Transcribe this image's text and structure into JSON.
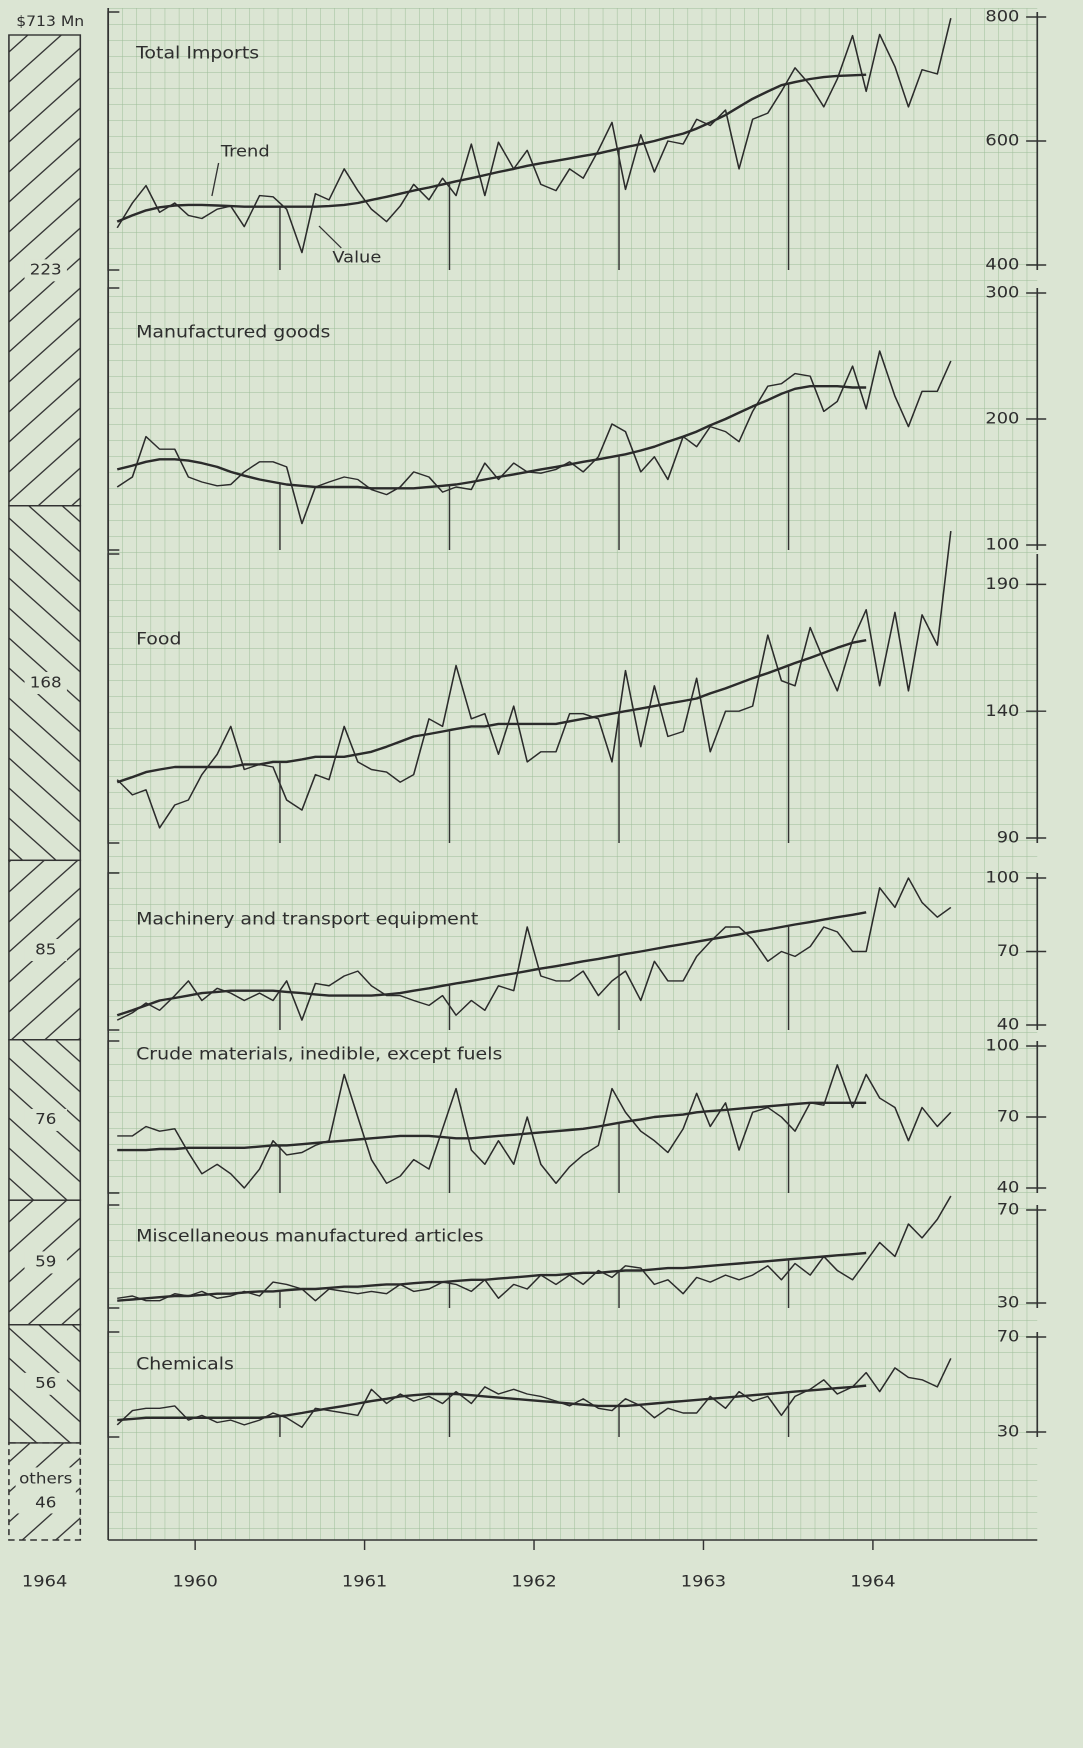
{
  "chart_data": [
    {
      "type": "stacked-bar",
      "total": {
        "value": 713,
        "label": "$713 Mn"
      },
      "categories": [
        "1964"
      ],
      "series": [
        {
          "values": [
            223
          ]
        },
        {
          "values": [
            168
          ]
        },
        {
          "values": [
            85
          ]
        },
        {
          "values": [
            76
          ]
        },
        {
          "values": [
            59
          ]
        },
        {
          "values": [
            56
          ]
        },
        {
          "name": "others",
          "values": [
            46
          ]
        }
      ]
    },
    {
      "type": "line",
      "title": "Total Imports",
      "color": "#2b2b2b",
      "ylim": [
        400,
        800
      ],
      "yticks": [
        400,
        600,
        800
      ],
      "series": [
        {
          "name": "Value",
          "values": [
            460,
            500,
            528,
            485,
            500,
            480,
            475,
            490,
            495,
            462,
            512,
            510,
            490,
            420,
            515,
            505,
            555,
            520,
            490,
            470,
            495,
            530,
            505,
            540,
            512,
            595,
            512,
            598,
            555,
            585,
            530,
            520,
            555,
            540,
            585,
            630,
            522,
            610,
            550,
            600,
            595,
            635,
            625,
            650,
            555,
            635,
            645,
            680,
            718,
            690,
            655,
            700,
            770,
            680,
            772,
            720,
            655,
            715,
            708,
            798
          ]
        },
        {
          "name": "Trend",
          "values": [
            470,
            480,
            488,
            493,
            496,
            497,
            497,
            496,
            495,
            494,
            494,
            494,
            494,
            494,
            494,
            495,
            497,
            500,
            505,
            510,
            515,
            520,
            525,
            530,
            535,
            540,
            545,
            550,
            555,
            560,
            564,
            568,
            572,
            576,
            580,
            585,
            590,
            595,
            600,
            606,
            612,
            620,
            630,
            642,
            655,
            668,
            680,
            690,
            695,
            700,
            703,
            705,
            706,
            707,
            null,
            null,
            null,
            null,
            null,
            null
          ]
        }
      ]
    },
    {
      "type": "line",
      "title": "Manufactured goods",
      "color": "#2b2b2b",
      "ylim": [
        100,
        300
      ],
      "yticks": [
        100,
        200,
        300
      ],
      "series": [
        {
          "values": [
            146,
            154,
            186,
            176,
            176,
            154,
            150,
            147,
            148,
            158,
            166,
            166,
            162,
            117,
            146,
            150,
            154,
            152,
            144,
            140,
            146,
            158,
            154,
            142,
            146,
            144,
            165,
            152,
            165,
            158,
            157,
            160,
            166,
            158,
            170,
            196,
            190,
            158,
            170,
            152,
            186,
            178,
            194,
            190,
            182,
            206,
            226,
            228,
            236,
            234,
            206,
            214,
            242,
            208,
            254,
            218,
            194,
            222,
            222,
            246
          ]
        },
        {
          "values": [
            160,
            163,
            166,
            168,
            168,
            167,
            165,
            162,
            158,
            155,
            152,
            150,
            148,
            147,
            146,
            146,
            146,
            146,
            145,
            145,
            145,
            145,
            146,
            147,
            148,
            150,
            152,
            154,
            156,
            158,
            160,
            162,
            164,
            166,
            168,
            170,
            172,
            175,
            178,
            182,
            186,
            190,
            195,
            200,
            205,
            210,
            215,
            220,
            224,
            226,
            226,
            226,
            225,
            225,
            null,
            null,
            null,
            null,
            null,
            null
          ]
        }
      ]
    },
    {
      "type": "line",
      "title": "Food",
      "color": "#2b2b2b",
      "ylim": [
        90,
        200
      ],
      "yticks": [
        90,
        140,
        190
      ],
      "series": [
        {
          "values": [
            113,
            107,
            109,
            94,
            103,
            105,
            115,
            123,
            134,
            117,
            119,
            118,
            105,
            101,
            115,
            113,
            134,
            120,
            117,
            116,
            112,
            115,
            137,
            134,
            158,
            137,
            139,
            123,
            142,
            120,
            124,
            124,
            139,
            139,
            137,
            120,
            156,
            126,
            150,
            130,
            132,
            153,
            124,
            140,
            140,
            142,
            170,
            152,
            150,
            173,
            160,
            148,
            168,
            180,
            150,
            179,
            148,
            178,
            166,
            211
          ]
        },
        {
          "values": [
            112,
            114,
            116,
            117,
            118,
            118,
            118,
            118,
            118,
            119,
            119,
            120,
            120,
            121,
            122,
            122,
            122,
            123,
            124,
            126,
            128,
            130,
            131,
            132,
            133,
            134,
            134,
            135,
            135,
            135,
            135,
            135,
            136,
            137,
            138,
            139,
            140,
            141,
            142,
            143,
            144,
            145,
            147,
            149,
            151,
            153,
            155,
            157,
            159,
            161,
            163,
            165,
            167,
            168,
            null,
            null,
            null,
            null,
            null,
            null
          ]
        }
      ]
    },
    {
      "type": "line",
      "title": "Machinery and transport equipment",
      "color": "#2b2b2b",
      "ylim": [
        40,
        100
      ],
      "yticks": [
        40,
        70,
        100
      ],
      "series": [
        {
          "values": [
            42,
            45,
            49,
            46,
            52,
            58,
            50,
            55,
            53,
            50,
            53,
            50,
            58,
            42,
            57,
            56,
            60,
            62,
            56,
            52,
            52,
            50,
            48,
            52,
            44,
            50,
            46,
            56,
            54,
            80,
            60,
            58,
            58,
            62,
            52,
            58,
            62,
            50,
            66,
            58,
            58,
            68,
            74,
            80,
            80,
            75,
            66,
            70,
            68,
            72,
            80,
            78,
            70,
            70,
            96,
            88,
            100,
            90,
            84,
            88
          ]
        },
        {
          "values": [
            44,
            46,
            48,
            50,
            51,
            52,
            53,
            53.5,
            54,
            54,
            54,
            54,
            53.5,
            53,
            52.5,
            52,
            52,
            52,
            52,
            52.5,
            53,
            54,
            55,
            56,
            57,
            58,
            59,
            60,
            61,
            62,
            63,
            64,
            65,
            66,
            67,
            68,
            69,
            70,
            71,
            72,
            73,
            74,
            75,
            76,
            77,
            78,
            79,
            80,
            81,
            82,
            83,
            84,
            85,
            86,
            null,
            null,
            null,
            null,
            null,
            null
          ]
        }
      ]
    },
    {
      "type": "line",
      "title": "Crude materials, inedible, except fuels",
      "color": "#2b2b2b",
      "ylim": [
        40,
        100
      ],
      "yticks": [
        40,
        70,
        100
      ],
      "series": [
        {
          "values": [
            62,
            62,
            66,
            64,
            65,
            55,
            46,
            50,
            46,
            40,
            48,
            60,
            54,
            55,
            58,
            60,
            88,
            70,
            52,
            42,
            45,
            52,
            48,
            65,
            82,
            56,
            50,
            60,
            50,
            70,
            50,
            42,
            49,
            54,
            58,
            82,
            72,
            64,
            60,
            55,
            65,
            80,
            66,
            76,
            56,
            72,
            74,
            70,
            64,
            76,
            75,
            92,
            74,
            88,
            78,
            74,
            60,
            74,
            66,
            72
          ]
        },
        {
          "values": [
            56,
            56,
            56,
            56.5,
            56.5,
            57,
            57,
            57,
            57,
            57,
            57.5,
            58,
            58,
            58.5,
            59,
            59.5,
            60,
            60.5,
            61,
            61.5,
            62,
            62,
            62,
            61.5,
            61,
            61,
            61.5,
            62,
            62.5,
            63,
            63.5,
            64,
            64.5,
            65,
            66,
            67,
            68,
            69,
            70,
            70.5,
            71,
            72,
            72.5,
            73,
            73.5,
            74,
            74.5,
            75,
            75.5,
            76,
            76,
            76,
            76,
            76,
            null,
            null,
            null,
            null,
            null,
            null
          ]
        }
      ]
    },
    {
      "type": "line",
      "title": "Miscellaneous manufactured articles",
      "color": "#2b2b2b",
      "ylim": [
        30,
        70
      ],
      "yticks": [
        30,
        70
      ],
      "series": [
        {
          "values": [
            32,
            33,
            31,
            31,
            34,
            33,
            35,
            32,
            33,
            35,
            33,
            39,
            38,
            36,
            31,
            36,
            35,
            34,
            35,
            34,
            38,
            35,
            36,
            39,
            38,
            35,
            40,
            32,
            38,
            36,
            42,
            38,
            42,
            38,
            44,
            41,
            46,
            45,
            38,
            40,
            34,
            41,
            39,
            42,
            40,
            42,
            46,
            40,
            47,
            42,
            50,
            44,
            40,
            48,
            56,
            50,
            64,
            58,
            66,
            76
          ]
        },
        {
          "values": [
            31,
            31.5,
            32,
            32.5,
            33,
            33,
            33.5,
            34,
            34,
            34.5,
            35,
            35,
            35.5,
            36,
            36,
            36.5,
            37,
            37,
            37.5,
            38,
            38,
            38.5,
            39,
            39,
            39.5,
            40,
            40,
            40.5,
            41,
            41.5,
            42,
            42,
            42.5,
            43,
            43,
            43.5,
            44,
            44,
            44.5,
            45,
            45,
            45.5,
            46,
            46.5,
            47,
            47.5,
            48,
            48.5,
            49,
            49.5,
            50,
            50.5,
            51,
            51.5,
            null,
            null,
            null,
            null,
            null,
            null
          ]
        }
      ]
    },
    {
      "type": "line",
      "title": "Chemicals",
      "color": "#2b2b2b",
      "ylim": [
        30,
        70
      ],
      "yticks": [
        30,
        70
      ],
      "xlim": [
        1960,
        1965.47
      ],
      "xticks": [
        {
          "value": 1960.5,
          "label": "1960"
        },
        {
          "value": 1961.5,
          "label": "1961"
        },
        {
          "value": 1962.5,
          "label": "1962"
        },
        {
          "value": 1963.5,
          "label": "1963"
        },
        {
          "value": 1964.5,
          "label": "1964"
        }
      ],
      "x": [
        1960.04,
        1960.13,
        1960.21,
        1960.29,
        1960.38,
        1960.46,
        1960.54,
        1960.63,
        1960.71,
        1960.79,
        1960.88,
        1960.96,
        1961.04,
        1961.13,
        1961.21,
        1961.29,
        1961.38,
        1961.46,
        1961.54,
        1961.63,
        1961.71,
        1961.79,
        1961.88,
        1961.96,
        1962.04,
        1962.13,
        1962.21,
        1962.29,
        1962.38,
        1962.46,
        1962.54,
        1962.63,
        1962.71,
        1962.79,
        1962.88,
        1962.96,
        1963.04,
        1963.13,
        1963.21,
        1963.29,
        1963.38,
        1963.46,
        1963.54,
        1963.63,
        1963.71,
        1963.79,
        1963.88,
        1963.96,
        1964.04,
        1964.13,
        1964.21,
        1964.29,
        1964.38,
        1964.46,
        1964.54,
        1964.63,
        1964.71,
        1964.79,
        1964.88,
        1964.96
      ],
      "series": [
        {
          "values": [
            33,
            39,
            40,
            40,
            41,
            35,
            37,
            34,
            35,
            33,
            35,
            38,
            36,
            32,
            40,
            39,
            38,
            37,
            48,
            42,
            46,
            43,
            45,
            42,
            47,
            42,
            49,
            46,
            48,
            46,
            45,
            43,
            41,
            44,
            40,
            39,
            44,
            41,
            36,
            40,
            38,
            38,
            45,
            40,
            47,
            43,
            45,
            37,
            45,
            48,
            52,
            46,
            49,
            55,
            47,
            57,
            53,
            52,
            49,
            61
          ]
        },
        {
          "values": [
            35,
            35.5,
            36,
            36,
            36,
            36,
            36,
            36,
            36,
            36,
            36,
            36.5,
            37,
            38,
            39,
            40,
            41,
            42,
            43,
            44,
            45,
            45.5,
            46,
            46,
            46,
            45.5,
            45,
            44.5,
            44,
            43.5,
            43,
            42.5,
            42,
            41.5,
            41,
            41,
            41,
            41.5,
            42,
            42.5,
            43,
            43.5,
            44,
            44.5,
            45,
            45.5,
            46,
            46.5,
            47,
            47.5,
            48,
            48.5,
            49,
            49.5,
            null,
            null,
            null,
            null,
            null,
            null
          ]
        }
      ]
    }
  ]
}
